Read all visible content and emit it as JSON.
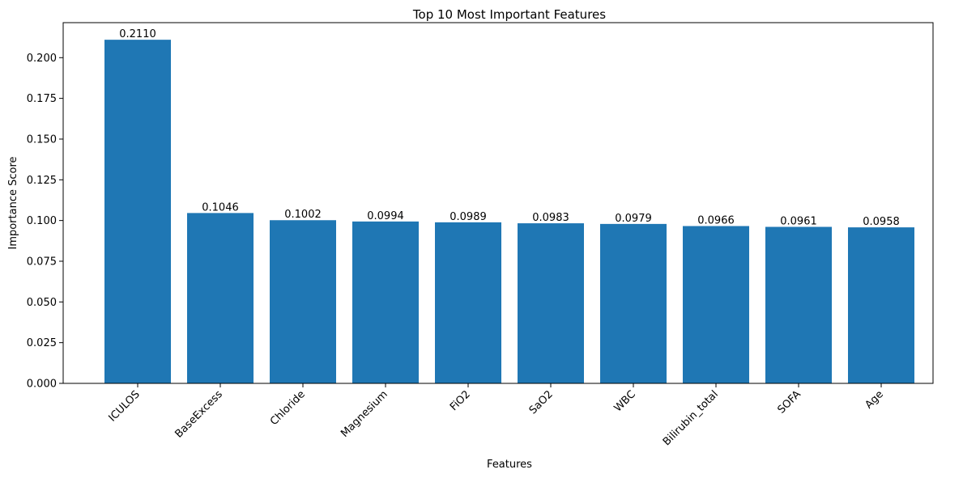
{
  "chart_data": {
    "type": "bar",
    "title": "Top 10 Most Important Features",
    "xlabel": "Features",
    "ylabel": "Importance Score",
    "categories": [
      "ICULOS",
      "BaseExcess",
      "Chloride",
      "Magnesium",
      "FiO2",
      "SaO2",
      "WBC",
      "Bilirubin_total",
      "SOFA",
      "Age"
    ],
    "values": [
      0.211,
      0.1046,
      0.1002,
      0.0994,
      0.0989,
      0.0983,
      0.0979,
      0.0966,
      0.0961,
      0.0958
    ],
    "value_labels": [
      "0.2110",
      "0.1046",
      "0.1002",
      "0.0994",
      "0.0989",
      "0.0983",
      "0.0979",
      "0.0966",
      "0.0961",
      "0.0958"
    ],
    "yticks": [
      0,
      0.025,
      0.05,
      0.075,
      0.1,
      0.125,
      0.15,
      0.175,
      0.2
    ],
    "ytick_labels": [
      "0.000",
      "0.025",
      "0.050",
      "0.075",
      "0.100",
      "0.125",
      "0.150",
      "0.175",
      "0.200"
    ],
    "ylim": [
      0,
      0.2215
    ],
    "grid": false,
    "bar_color": "#1f77b4"
  }
}
